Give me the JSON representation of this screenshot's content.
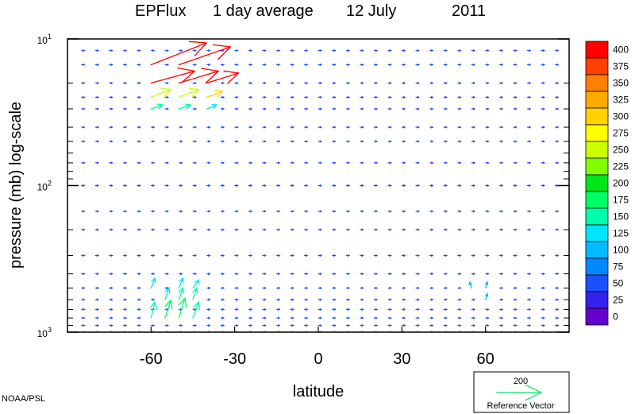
{
  "chart_data": {
    "type": "vector-field",
    "title_parts": [
      "EPFlux",
      "1 day average",
      "12 July",
      "2011"
    ],
    "xlabel": "latitude",
    "ylabel": "pressure (mb)  log-scale",
    "x_ticks": [
      {
        "value": -60,
        "label": "-60"
      },
      {
        "value": -30,
        "label": "-30"
      },
      {
        "value": 0,
        "label": "0"
      },
      {
        "value": 30,
        "label": "30"
      },
      {
        "value": 60,
        "label": "60"
      }
    ],
    "xlim": [
      -90,
      90
    ],
    "y_scale": "log",
    "ylim": [
      1000,
      10
    ],
    "y_major_ticks": [
      {
        "value": 10,
        "label_base": "10",
        "label_exp": "1"
      },
      {
        "value": 100,
        "label_base": "10",
        "label_exp": "2"
      },
      {
        "value": 1000,
        "label_base": "10",
        "label_exp": "3"
      }
    ],
    "y_minor_ticks": [
      20,
      30,
      40,
      50,
      60,
      70,
      80,
      90,
      200,
      300,
      400,
      500,
      600,
      700,
      800,
      900
    ],
    "colorbar": {
      "levels": [
        "400",
        "375",
        "350",
        "325",
        "300",
        "275",
        "250",
        "225",
        "200",
        "175",
        "150",
        "125",
        "100",
        "75",
        "50",
        "25",
        "0"
      ],
      "colors": [
        "#ff0000",
        "#ff4000",
        "#ff8000",
        "#ffaa00",
        "#ffd200",
        "#ffff00",
        "#ccff00",
        "#80ff00",
        "#00e619",
        "#00ff66",
        "#00ffaa",
        "#00e5ff",
        "#00bbff",
        "#0088ff",
        "#1a50ff",
        "#3322ee",
        "#6600cc"
      ]
    },
    "reference_vector": {
      "value": "200",
      "label": "Reference Vector",
      "color": "#33e680"
    },
    "notable_vectors": [
      {
        "lat": -60,
        "p": 15,
        "u": 28,
        "v": 11,
        "mag": 420
      },
      {
        "lat": -50,
        "p": 15,
        "u": 26,
        "v": 9,
        "mag": 430
      },
      {
        "lat": -40,
        "p": 14,
        "u": 22,
        "v": 9,
        "mag": 410
      },
      {
        "lat": -30,
        "p": 14,
        "u": 18,
        "v": 8,
        "mag": 400
      },
      {
        "lat": -55,
        "p": 13,
        "u": 18,
        "v": 9,
        "mag": 390
      },
      {
        "lat": -45,
        "p": 13,
        "u": 14,
        "v": 8,
        "mag": 360
      },
      {
        "lat": -60,
        "p": 20,
        "u": 22,
        "v": 6,
        "mag": 410
      },
      {
        "lat": -50,
        "p": 20,
        "u": 20,
        "v": 6,
        "mag": 405
      },
      {
        "lat": -40,
        "p": 20,
        "u": 16,
        "v": 5,
        "mag": 395
      },
      {
        "lat": -60,
        "p": 25,
        "u": 10,
        "v": 4,
        "mag": 240
      },
      {
        "lat": -50,
        "p": 25,
        "u": 10,
        "v": 4,
        "mag": 260
      },
      {
        "lat": -40,
        "p": 25,
        "u": 8,
        "v": 3,
        "mag": 300
      },
      {
        "lat": -60,
        "p": 30,
        "u": 6,
        "v": 2,
        "mag": 140
      },
      {
        "lat": -50,
        "p": 30,
        "u": 6,
        "v": 2,
        "mag": 140
      },
      {
        "lat": -40,
        "p": 30,
        "u": 5,
        "v": 2,
        "mag": 130
      },
      {
        "lat": -60,
        "p": 800,
        "u": 2,
        "v": 8,
        "mag": 150
      },
      {
        "lat": -55,
        "p": 800,
        "u": 3,
        "v": 9,
        "mag": 170
      },
      {
        "lat": -50,
        "p": 800,
        "u": 3,
        "v": 10,
        "mag": 180
      },
      {
        "lat": -45,
        "p": 800,
        "u": 3,
        "v": 8,
        "mag": 160
      },
      {
        "lat": -55,
        "p": 600,
        "u": 2,
        "v": 6,
        "mag": 130
      },
      {
        "lat": -50,
        "p": 600,
        "u": 2,
        "v": 6,
        "mag": 140
      },
      {
        "lat": -45,
        "p": 600,
        "u": 2,
        "v": 6,
        "mag": 140
      },
      {
        "lat": -60,
        "p": 500,
        "u": 2,
        "v": 5,
        "mag": 120
      },
      {
        "lat": -50,
        "p": 500,
        "u": 2,
        "v": 5,
        "mag": 120
      },
      {
        "lat": -45,
        "p": 500,
        "u": 3,
        "v": 4,
        "mag": 120
      },
      {
        "lat": 60,
        "p": 500,
        "u": 1,
        "v": 3,
        "mag": 90
      },
      {
        "lat": 60,
        "p": 600,
        "u": 1,
        "v": 3,
        "mag": 90
      },
      {
        "lat": 55,
        "p": 500,
        "u": -1,
        "v": 3,
        "mag": 90
      }
    ],
    "background_vector_magnitude": 40
  },
  "footer": {
    "credit": "NOAA/PSL"
  }
}
